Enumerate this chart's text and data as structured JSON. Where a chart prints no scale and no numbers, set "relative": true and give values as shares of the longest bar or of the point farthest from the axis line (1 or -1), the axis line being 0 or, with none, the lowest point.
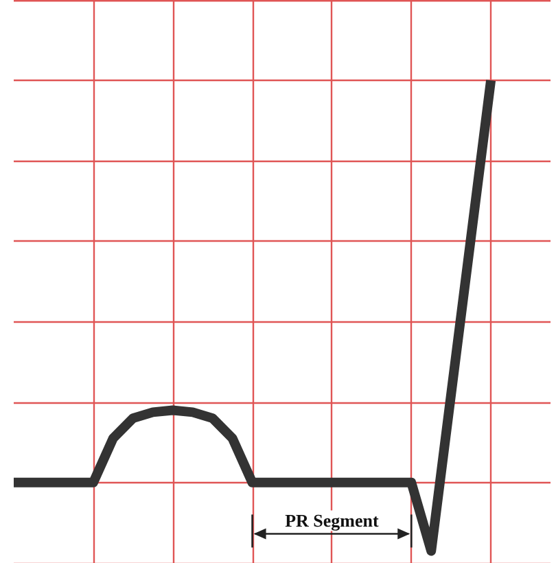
{
  "chart_data": {
    "type": "line",
    "relative": true,
    "categories": [
      null,
      null,
      null,
      null,
      null,
      null,
      null,
      null,
      null,
      null,
      null,
      null,
      null,
      null,
      null,
      null,
      null,
      null,
      null,
      null,
      null,
      null,
      null,
      null,
      null
    ],
    "series": [
      {
        "color": "#333333",
        "values": [
          0,
          0,
          0,
          0,
          0,
          0.11,
          0.16,
          0.175,
          0.18,
          0.175,
          0.16,
          0.11,
          0,
          0,
          0,
          0,
          0,
          0,
          0,
          0,
          0,
          -0.17,
          0.22,
          0.61,
          1
        ]
      }
    ],
    "annotations": [
      "PR Segment"
    ],
    "grid": true,
    "marker": "none",
    "line_style": "solid",
    "tick_labels": false
  }
}
